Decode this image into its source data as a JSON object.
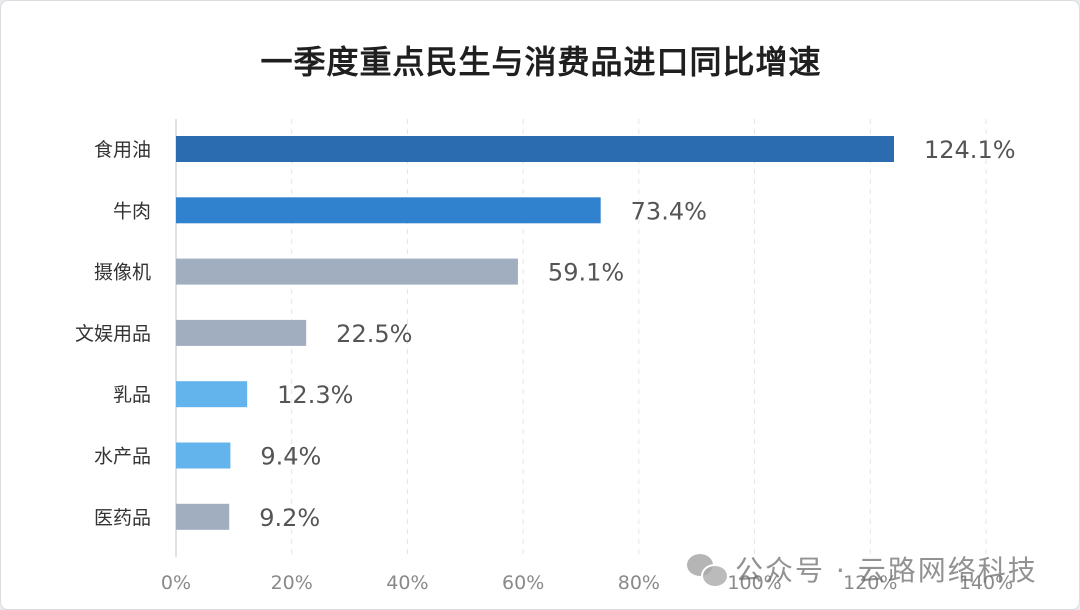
{
  "chart_data": {
    "type": "bar",
    "orientation": "horizontal",
    "title": "一季度重点民生与消费品进口同比增速",
    "categories": [
      "食用油",
      "牛肉",
      "摄像机",
      "文娱用品",
      "乳品",
      "水产品",
      "医药品"
    ],
    "values": [
      124.1,
      73.4,
      59.1,
      22.5,
      12.3,
      9.4,
      9.2
    ],
    "value_labels": [
      "124.1%",
      "73.4%",
      "59.1%",
      "22.5%",
      "12.3%",
      "9.4%",
      "9.2%"
    ],
    "colors": [
      "#2b6cb0",
      "#3182ce",
      "#a0aec0",
      "#a0aec0",
      "#63b3ed",
      "#63b3ed",
      "#a0aec0"
    ],
    "xlim": [
      0,
      140
    ],
    "x_ticks": [
      0,
      20,
      40,
      60,
      80,
      100,
      120,
      140
    ],
    "x_tick_labels": [
      "0%",
      "20%",
      "40%",
      "60%",
      "80%",
      "100%",
      "120%",
      "140%"
    ],
    "grid": "vertical-dashed",
    "legend": "none"
  },
  "watermark": {
    "icon": "wechat-icon",
    "text": "公众号 · 云路网络科技"
  }
}
